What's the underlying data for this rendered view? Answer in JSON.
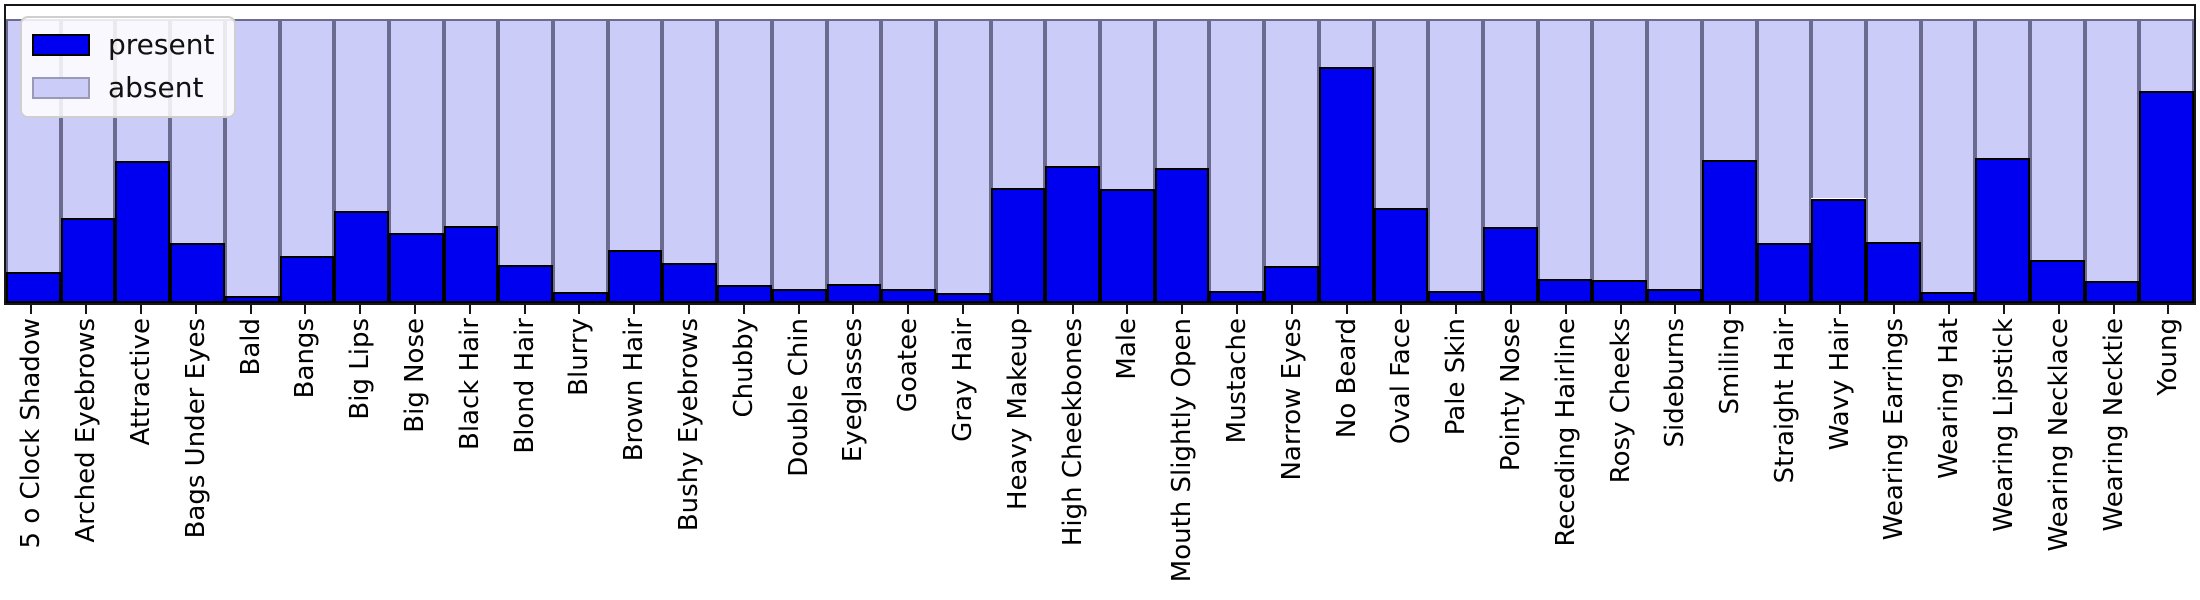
{
  "legend": {
    "position": "upper left",
    "present_label": "present",
    "absent_label": "absent"
  },
  "colors": {
    "present": "#0000f0",
    "absent": "#ccccf8",
    "bar_edge_present": "#000000",
    "bar_edge_absent": "rgba(10,10,40,0.50)",
    "axes_edge": "#15151a"
  },
  "chart_data": {
    "type": "bar",
    "stacked": true,
    "normalized": true,
    "title": "",
    "xlabel": "",
    "ylabel": "",
    "ylim": [
      0,
      1.05
    ],
    "grid": false,
    "y_axis_ticks_visible": false,
    "x_tick_label_rotation": 90,
    "legend_entries": [
      "present",
      "absent"
    ],
    "categories": [
      "5 o Clock Shadow",
      "Arched Eyebrows",
      "Attractive",
      "Bags Under Eyes",
      "Bald",
      "Bangs",
      "Big Lips",
      "Big Nose",
      "Black Hair",
      "Blond Hair",
      "Blurry",
      "Brown Hair",
      "Bushy Eyebrows",
      "Chubby",
      "Double Chin",
      "Eyeglasses",
      "Goatee",
      "Gray Hair",
      "Heavy Makeup",
      "High Cheekbones",
      "Male",
      "Mouth Slightly Open",
      "Mustache",
      "Narrow Eyes",
      "No Beard",
      "Oval Face",
      "Pale Skin",
      "Pointy Nose",
      "Receding Hairline",
      "Rosy Cheeks",
      "Sideburns",
      "Smiling",
      "Straight Hair",
      "Wavy Hair",
      "Wearing Earrings",
      "Wearing Hat",
      "Wearing Lipstick",
      "Wearing Necklace",
      "Wearing Necktie",
      "Young"
    ],
    "series": [
      {
        "name": "present",
        "values": [
          0.11,
          0.298,
          0.5,
          0.21,
          0.025,
          0.165,
          0.325,
          0.245,
          0.27,
          0.135,
          0.04,
          0.185,
          0.14,
          0.064,
          0.051,
          0.066,
          0.051,
          0.035,
          0.404,
          0.481,
          0.402,
          0.475,
          0.041,
          0.131,
          0.83,
          0.335,
          0.043,
          0.266,
          0.086,
          0.081,
          0.051,
          0.502,
          0.211,
          0.368,
          0.215,
          0.038,
          0.511,
          0.15,
          0.078,
          0.745
        ]
      },
      {
        "name": "absent",
        "values": [
          0.89,
          0.702,
          0.5,
          0.79,
          0.975,
          0.835,
          0.675,
          0.755,
          0.73,
          0.865,
          0.96,
          0.815,
          0.86,
          0.936,
          0.949,
          0.934,
          0.949,
          0.965,
          0.596,
          0.519,
          0.598,
          0.525,
          0.959,
          0.869,
          0.17,
          0.665,
          0.957,
          0.734,
          0.914,
          0.919,
          0.949,
          0.498,
          0.789,
          0.632,
          0.785,
          0.962,
          0.489,
          0.85,
          0.922,
          0.255
        ]
      }
    ]
  }
}
